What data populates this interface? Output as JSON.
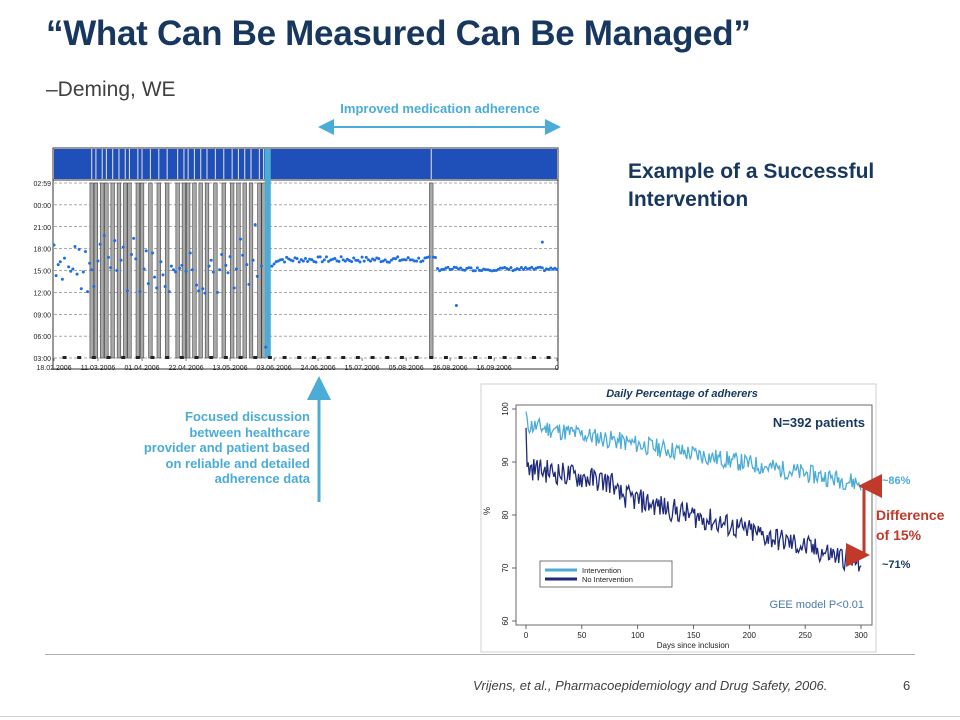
{
  "slide": {
    "title": "“What Can Be Measured Can Be Managed”",
    "attribution": "–Deming, WE",
    "improved_label": "Improved medication adherence",
    "example_title_line1": "Example of a Successful",
    "example_title_line2": "Intervention",
    "focused_note": [
      "Focused discussion",
      "between healthcare",
      "provider and patient based",
      "on reliable and detailed",
      "adherence data"
    ],
    "citation": "Vrijens, et al., Pharmacoepidemiology and Drug Safety, 2006.",
    "page_number": "6",
    "colors": {
      "title": "#17375e",
      "accent": "#4bacd6",
      "difference": "#c0392b",
      "timeline_bar": "#1f4fb8",
      "dots": "#1f6fe0"
    }
  },
  "chart_data": [
    {
      "type": "scatter",
      "subtype": "dosing-timeline",
      "ylabel": "",
      "xlabel": "",
      "y_ticks": [
        "02:59",
        "00:00",
        "21:00",
        "18:00",
        "15:00",
        "12:00",
        "09:00",
        "06:00",
        "03:00"
      ],
      "x_ticks": [
        "18.02.2006",
        "11.03.2006",
        "01.04.2006",
        "22.04.2006",
        "13.05.2006",
        "03.06.2006",
        "24.06.2006",
        "15.07.2006",
        "05.08.2006",
        "26.08.2006",
        "16.09.2006",
        "0"
      ],
      "x_range_days": [
        0,
        240
      ],
      "intervention_day": 102,
      "missed_dose_days": [
        18,
        20,
        23,
        25,
        28,
        31,
        34,
        36,
        40,
        42,
        46,
        50,
        54,
        59,
        62,
        64,
        67,
        70,
        73,
        77,
        81,
        85,
        88,
        91,
        94,
        98,
        100,
        180
      ],
      "dose_times_before": [
        [
          0,
          18.5
        ],
        [
          1,
          14.3
        ],
        [
          2,
          15.8
        ],
        [
          3,
          16.2
        ],
        [
          4,
          13.8
        ],
        [
          5,
          16.7
        ],
        [
          7,
          15.5
        ],
        [
          8,
          14.9
        ],
        [
          9,
          15.2
        ],
        [
          10,
          18.3
        ],
        [
          11,
          14.5
        ],
        [
          12,
          17.9
        ],
        [
          13,
          12.5
        ],
        [
          14,
          14.8
        ],
        [
          15,
          17.6
        ],
        [
          16,
          12.1
        ],
        [
          17,
          16.0
        ],
        [
          18,
          15.1
        ],
        [
          19,
          12.8
        ],
        [
          21,
          16.3
        ],
        [
          22,
          18.6
        ],
        [
          24,
          19.8
        ],
        [
          26,
          16.8
        ],
        [
          27,
          15.4
        ],
        [
          29,
          19.1
        ],
        [
          30,
          15.0
        ],
        [
          32,
          16.4
        ],
        [
          33,
          18.2
        ],
        [
          35,
          12.2
        ],
        [
          37,
          17.2
        ],
        [
          38,
          19.4
        ],
        [
          39,
          16.6
        ],
        [
          41,
          12.1
        ],
        [
          43,
          15.2
        ],
        [
          44,
          17.7
        ],
        [
          45,
          13.2
        ],
        [
          47,
          17.4
        ],
        [
          48,
          14.1
        ],
        [
          49,
          12.6
        ],
        [
          51,
          16.2
        ],
        [
          52,
          14.4
        ],
        [
          53,
          12.8
        ],
        [
          55,
          12.1
        ],
        [
          56,
          15.6
        ],
        [
          57,
          15.1
        ],
        [
          58,
          14.8
        ],
        [
          60,
          15.3
        ],
        [
          61,
          15.7
        ],
        [
          63,
          14.9
        ],
        [
          65,
          17.4
        ],
        [
          66,
          15.1
        ],
        [
          68,
          13.0
        ],
        [
          69,
          12.2
        ],
        [
          71,
          12.5
        ],
        [
          72,
          11.9
        ],
        [
          74,
          15.6
        ],
        [
          75,
          16.4
        ],
        [
          76,
          14.8
        ],
        [
          78,
          12.0
        ],
        [
          79,
          15.1
        ],
        [
          80,
          17.2
        ],
        [
          82,
          15.7
        ],
        [
          83,
          14.7
        ],
        [
          84,
          16.9
        ],
        [
          86,
          12.6
        ],
        [
          87,
          15.2
        ],
        [
          89,
          19.3
        ],
        [
          90,
          17.1
        ],
        [
          92,
          15.8
        ],
        [
          93,
          13.1
        ],
        [
          95,
          16.4
        ],
        [
          96,
          21.3
        ],
        [
          97,
          14.2
        ],
        [
          99,
          15.6
        ],
        [
          101,
          4.5
        ]
      ],
      "dose_times_after_mean": 16.5,
      "late_outlier": [
        [
          192,
          10.2
        ],
        [
          233,
          18.9
        ]
      ]
    },
    {
      "type": "line",
      "title": "Daily Percentage of adherers",
      "annotation_n": "N=392 patients",
      "xlabel": "Days since inclusion",
      "ylabel": "%",
      "xlim": [
        0,
        300
      ],
      "ylim": [
        60,
        100
      ],
      "x_ticks": [
        "0",
        "50",
        "100",
        "150",
        "200",
        "250",
        "300"
      ],
      "y_ticks": [
        "60",
        "70",
        "80",
        "90",
        "100"
      ],
      "series": [
        {
          "name": "Intervention",
          "color": "#4bacd6",
          "start": 97,
          "end": 86
        },
        {
          "name": "No Intervention",
          "color": "#1f2a7a",
          "start": 89,
          "end": 71
        }
      ],
      "end_label_intervention": "~86%",
      "end_label_no_intervention": "~71%",
      "difference_label_line1": "Difference",
      "difference_label_line2": "of 15%",
      "stat_note": "GEE model   P<0.01"
    }
  ]
}
